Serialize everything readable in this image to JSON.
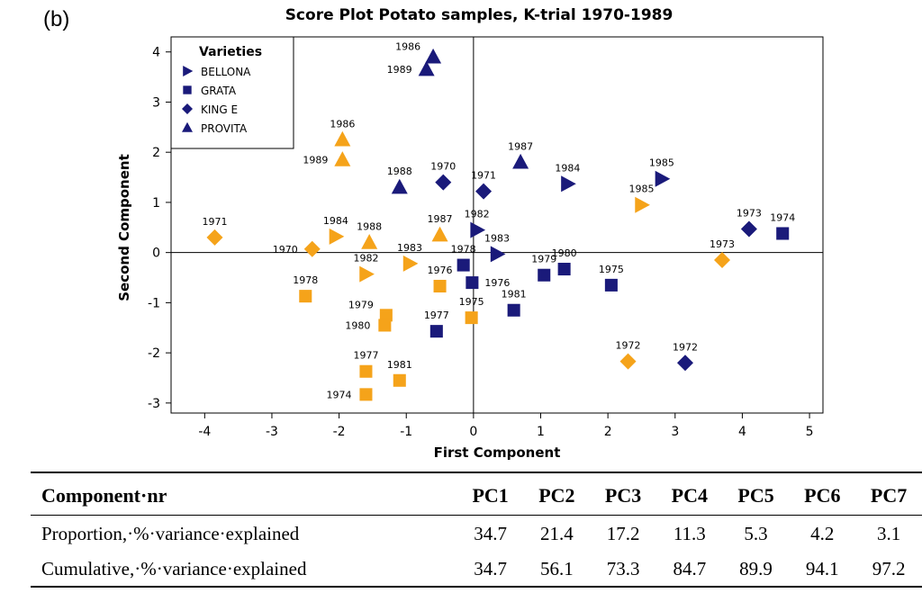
{
  "panel_label": "(b)",
  "chart_data": {
    "type": "scatter",
    "title": "Score Plot Potato samples, K-trial 1970-1989",
    "xlabel": "First Component",
    "ylabel": "Second Component",
    "xlim": [
      -4.5,
      5.2
    ],
    "ylim": [
      -3.2,
      4.3
    ],
    "xticks": [
      -4,
      -3,
      -2,
      -1,
      0,
      1,
      2,
      3,
      4,
      5
    ],
    "yticks": [
      -3,
      -2,
      -1,
      0,
      1,
      2,
      3,
      4
    ],
    "reference_lines": {
      "x": 0,
      "y": 0
    },
    "legend": {
      "title": "Varieties",
      "position": "top-left",
      "entries": [
        {
          "name": "BELLONA",
          "marker": "triangle-right"
        },
        {
          "name": "GRATA",
          "marker": "square"
        },
        {
          "name": "KING E",
          "marker": "diamond"
        },
        {
          "name": "PROVITA",
          "marker": "triangle-up"
        }
      ]
    },
    "colors": {
      "navy": "#1a1a7a",
      "orange": "#f5a31a"
    },
    "points": [
      {
        "variety": "PROVITA",
        "color": "navy",
        "label": "1986",
        "x": -0.6,
        "y": 3.9,
        "lpos": "tl"
      },
      {
        "variety": "PROVITA",
        "color": "navy",
        "label": "1989",
        "x": -0.7,
        "y": 3.65,
        "lpos": "l"
      },
      {
        "variety": "PROVITA",
        "color": "navy",
        "label": "1988",
        "x": -1.1,
        "y": 1.3,
        "lpos": "t"
      },
      {
        "variety": "PROVITA",
        "color": "navy",
        "label": "1987",
        "x": 0.7,
        "y": 1.8,
        "lpos": "t"
      },
      {
        "variety": "PROVITA",
        "color": "orange",
        "label": "1986",
        "x": -1.95,
        "y": 2.25,
        "lpos": "t"
      },
      {
        "variety": "PROVITA",
        "color": "orange",
        "label": "1989",
        "x": -1.95,
        "y": 1.85,
        "lpos": "l"
      },
      {
        "variety": "PROVITA",
        "color": "orange",
        "label": "1988",
        "x": -1.55,
        "y": 0.2,
        "lpos": "t"
      },
      {
        "variety": "PROVITA",
        "color": "orange",
        "label": "1987",
        "x": -0.5,
        "y": 0.35,
        "lpos": "t"
      },
      {
        "variety": "KING E",
        "color": "navy",
        "label": "1970",
        "x": -0.45,
        "y": 1.4,
        "lpos": "t"
      },
      {
        "variety": "KING E",
        "color": "navy",
        "label": "1971",
        "x": 0.15,
        "y": 1.22,
        "lpos": "t"
      },
      {
        "variety": "KING E",
        "color": "navy",
        "label": "1973",
        "x": 4.1,
        "y": 0.47,
        "lpos": "t"
      },
      {
        "variety": "KING E",
        "color": "navy",
        "label": "1972",
        "x": 3.15,
        "y": -2.2,
        "lpos": "t"
      },
      {
        "variety": "KING E",
        "color": "orange",
        "label": "1971",
        "x": -3.85,
        "y": 0.3,
        "lpos": "t"
      },
      {
        "variety": "KING E",
        "color": "orange",
        "label": "1970",
        "x": -2.4,
        "y": 0.07,
        "lpos": "l"
      },
      {
        "variety": "KING E",
        "color": "orange",
        "label": "1973",
        "x": 3.7,
        "y": -0.15,
        "lpos": "t"
      },
      {
        "variety": "KING E",
        "color": "orange",
        "label": "1972",
        "x": 2.3,
        "y": -2.17,
        "lpos": "t"
      },
      {
        "variety": "BELLONA",
        "color": "navy",
        "label": "1984",
        "x": 1.4,
        "y": 1.37,
        "lpos": "t"
      },
      {
        "variety": "BELLONA",
        "color": "navy",
        "label": "1985",
        "x": 2.8,
        "y": 1.47,
        "lpos": "t"
      },
      {
        "variety": "BELLONA",
        "color": "navy",
        "label": "1982",
        "x": 0.05,
        "y": 0.45,
        "lpos": "t"
      },
      {
        "variety": "BELLONA",
        "color": "navy",
        "label": "1983",
        "x": 0.35,
        "y": -0.03,
        "lpos": "t"
      },
      {
        "variety": "BELLONA",
        "color": "orange",
        "label": "1985",
        "x": 2.5,
        "y": 0.95,
        "lpos": "t"
      },
      {
        "variety": "BELLONA",
        "color": "orange",
        "label": "1984",
        "x": -2.05,
        "y": 0.32,
        "lpos": "t"
      },
      {
        "variety": "BELLONA",
        "color": "orange",
        "label": "1982",
        "x": -1.6,
        "y": -0.43,
        "lpos": "t"
      },
      {
        "variety": "BELLONA",
        "color": "orange",
        "label": "1983",
        "x": -0.95,
        "y": -0.22,
        "lpos": "t"
      },
      {
        "variety": "GRATA",
        "color": "navy",
        "label": "1974",
        "x": 4.6,
        "y": 0.38,
        "lpos": "t"
      },
      {
        "variety": "GRATA",
        "color": "navy",
        "label": "1978",
        "x": -0.15,
        "y": -0.25,
        "lpos": "t"
      },
      {
        "variety": "GRATA",
        "color": "navy",
        "label": "1976",
        "x": -0.02,
        "y": -0.6,
        "lpos": "r"
      },
      {
        "variety": "GRATA",
        "color": "navy",
        "label": "1979",
        "x": 1.05,
        "y": -0.45,
        "lpos": "t"
      },
      {
        "variety": "GRATA",
        "color": "navy",
        "label": "1980",
        "x": 1.35,
        "y": -0.33,
        "lpos": "t"
      },
      {
        "variety": "GRATA",
        "color": "navy",
        "label": "1975",
        "x": 2.05,
        "y": -0.65,
        "lpos": "t"
      },
      {
        "variety": "GRATA",
        "color": "navy",
        "label": "1981",
        "x": 0.6,
        "y": -1.15,
        "lpos": "t"
      },
      {
        "variety": "GRATA",
        "color": "navy",
        "label": "1977",
        "x": -0.55,
        "y": -1.57,
        "lpos": "t"
      },
      {
        "variety": "GRATA",
        "color": "orange",
        "label": "1978",
        "x": -2.5,
        "y": -0.87,
        "lpos": "t"
      },
      {
        "variety": "GRATA",
        "color": "orange",
        "label": "1976",
        "x": -0.5,
        "y": -0.67,
        "lpos": "t"
      },
      {
        "variety": "GRATA",
        "color": "orange",
        "label": "1975",
        "x": -0.03,
        "y": -1.3,
        "lpos": "t"
      },
      {
        "variety": "GRATA",
        "color": "orange",
        "label": "1979",
        "x": -1.3,
        "y": -1.25,
        "lpos": "tl"
      },
      {
        "variety": "GRATA",
        "color": "orange",
        "label": "1980",
        "x": -1.32,
        "y": -1.45,
        "lpos": "l"
      },
      {
        "variety": "GRATA",
        "color": "orange",
        "label": "1977",
        "x": -1.6,
        "y": -2.37,
        "lpos": "t"
      },
      {
        "variety": "GRATA",
        "color": "orange",
        "label": "1974",
        "x": -1.6,
        "y": -2.83,
        "lpos": "l"
      },
      {
        "variety": "GRATA",
        "color": "orange",
        "label": "1981",
        "x": -1.1,
        "y": -2.55,
        "lpos": "t"
      }
    ]
  },
  "table": {
    "header_label": "Component·nr",
    "components": [
      "PC1",
      "PC2",
      "PC3",
      "PC4",
      "PC5",
      "PC6",
      "PC7"
    ],
    "rows": [
      {
        "label": "Proportion,·%·variance·explained",
        "values": [
          "34.7",
          "21.4",
          "17.2",
          "11.3",
          "5.3",
          "4.2",
          "3.1"
        ]
      },
      {
        "label": "Cumulative,·%·variance·explained",
        "values": [
          "34.7",
          "56.1",
          "73.3",
          "84.7",
          "89.9",
          "94.1",
          "97.2"
        ]
      }
    ]
  }
}
